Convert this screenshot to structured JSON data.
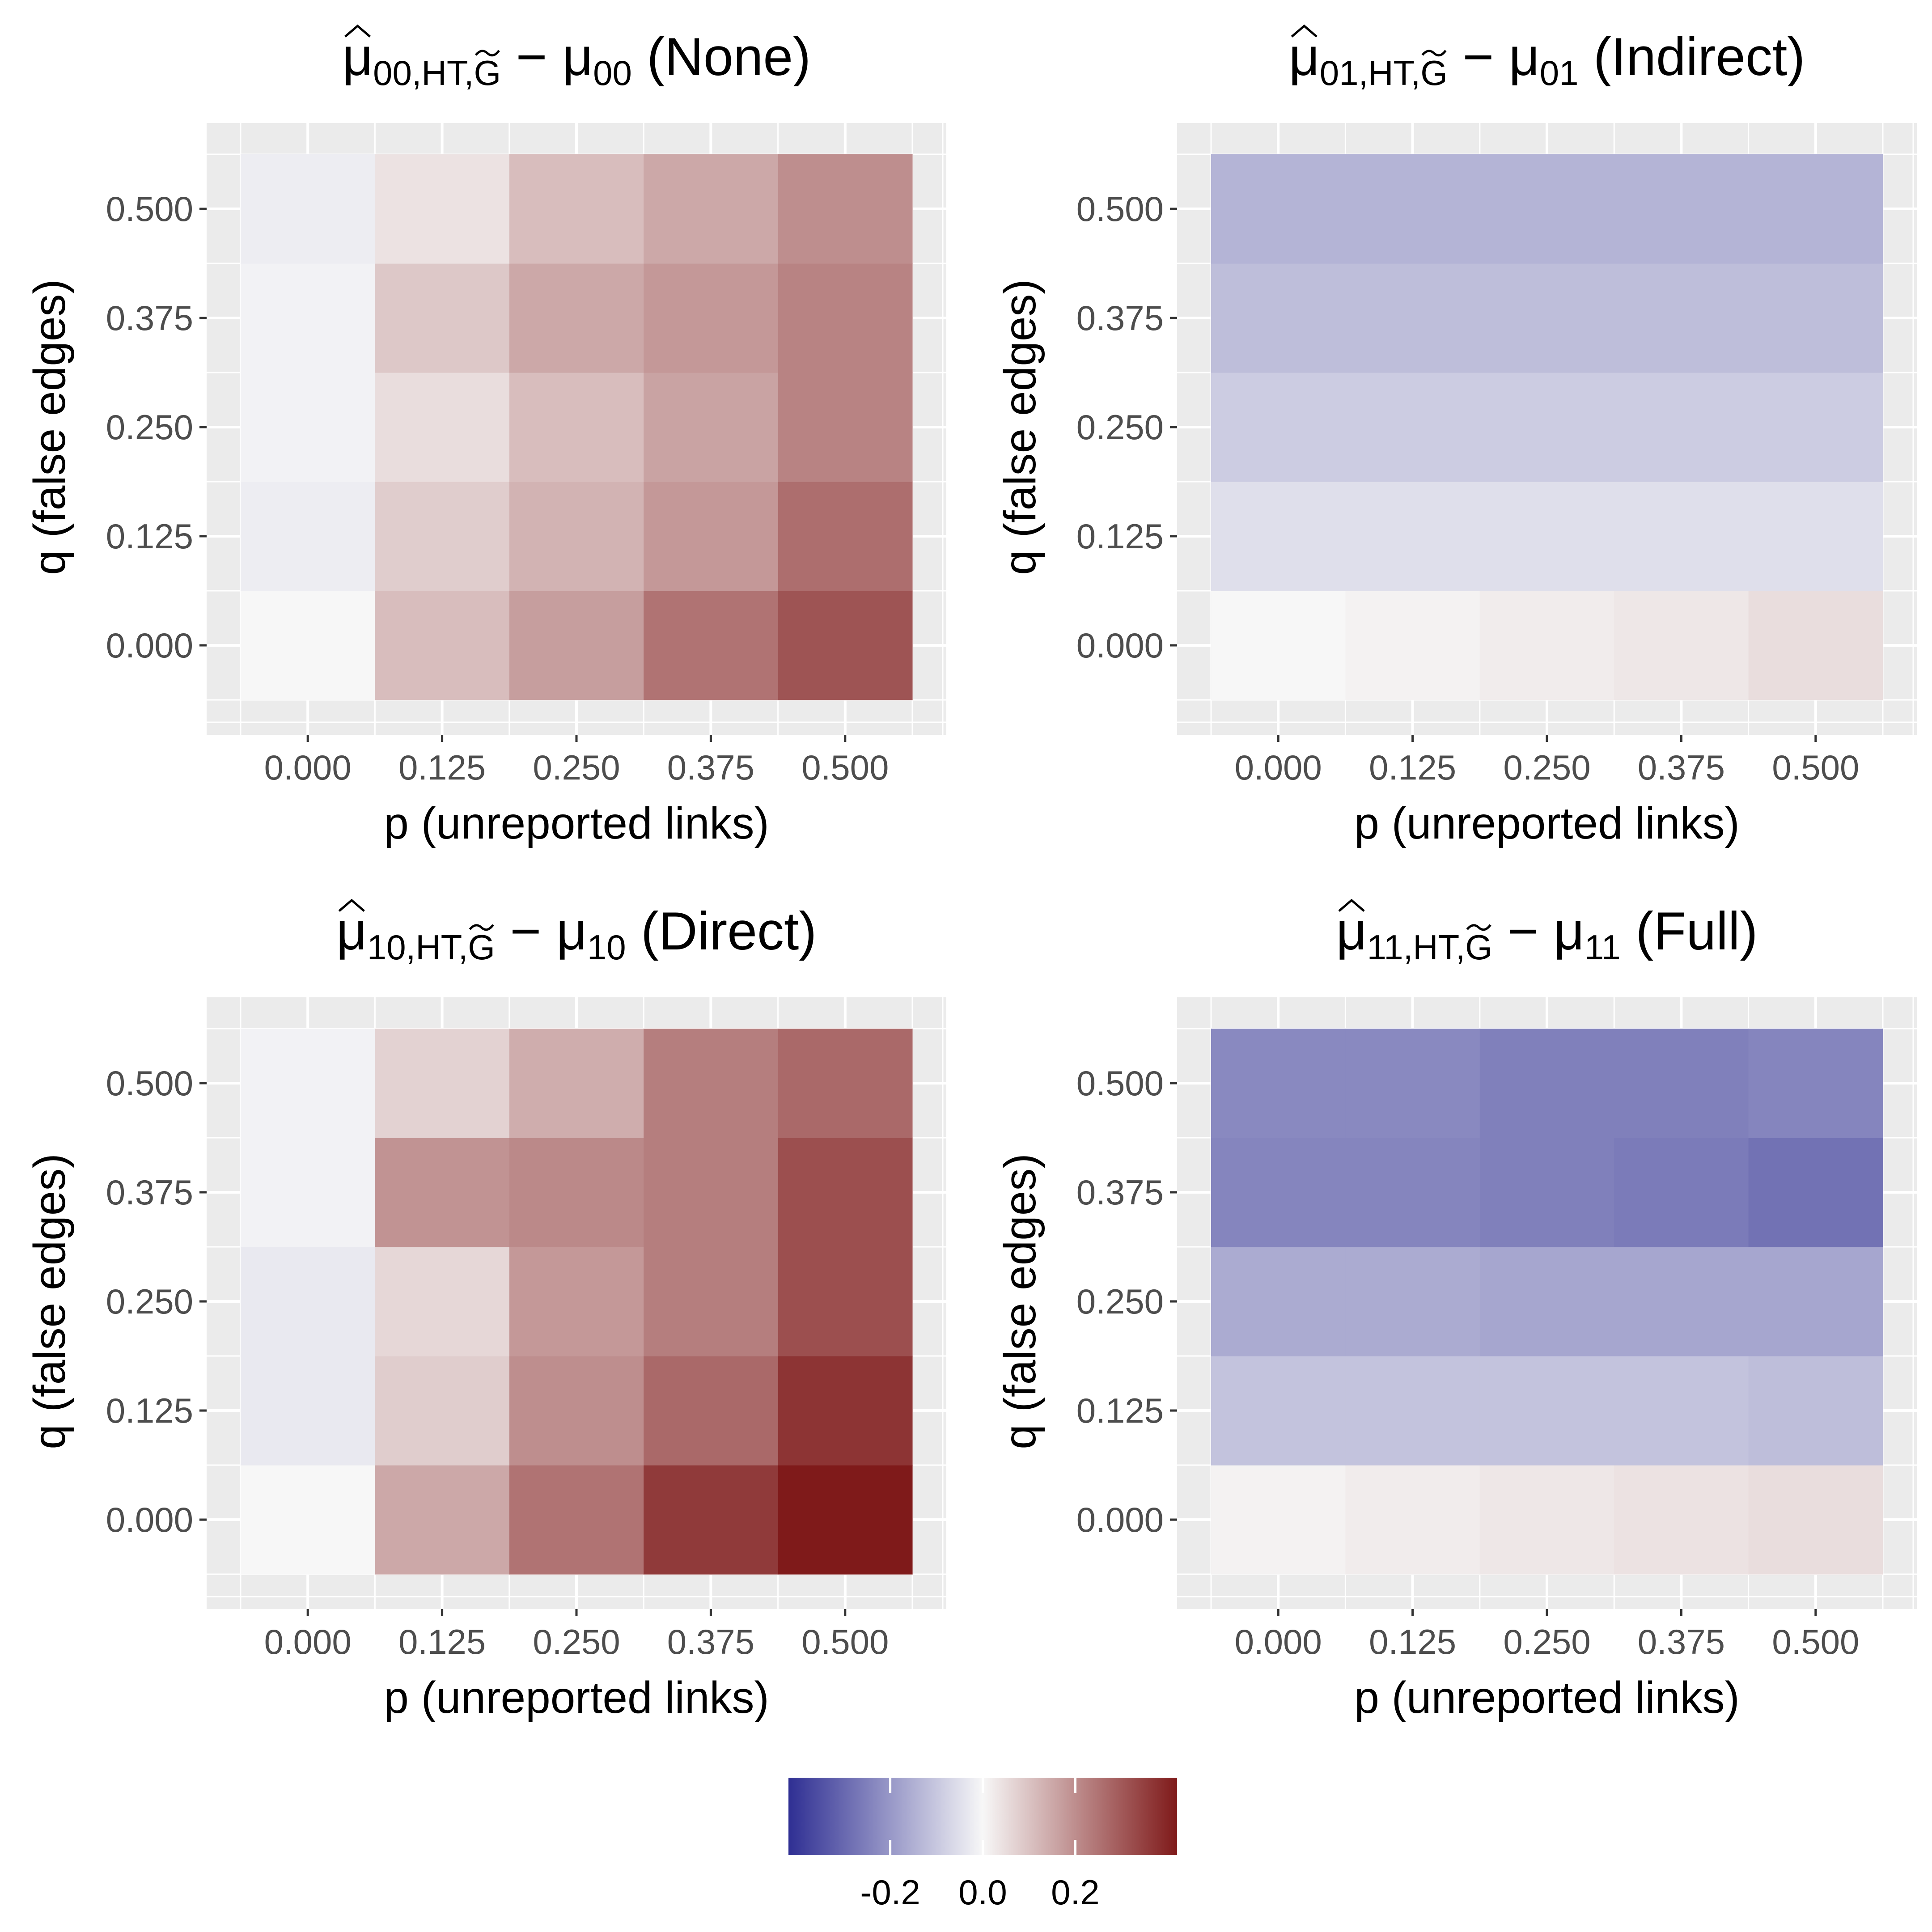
{
  "chart_data": [
    {
      "type": "heatmap",
      "title": {
        "hat_sym": "μ",
        "hat_sub": "00,HT,",
        "g_sym": "G",
        "minus": "−",
        "mu_sym": "μ",
        "mu_sub": "00",
        "label": "(None)"
      },
      "xlabel": "p (unreported links)",
      "ylabel": "q (false edges)",
      "x_ticks": [
        "0.000",
        "0.125",
        "0.250",
        "0.375",
        "0.500"
      ],
      "y_ticks": [
        "0.000",
        "0.125",
        "0.250",
        "0.375",
        "0.500"
      ],
      "rows_q_ascending": [
        [
          0.0,
          0.11,
          0.17,
          0.25,
          0.31
        ],
        [
          -0.02,
          0.08,
          0.13,
          0.18,
          0.26
        ],
        [
          -0.01,
          0.05,
          0.11,
          0.16,
          0.22
        ],
        [
          -0.01,
          0.09,
          0.15,
          0.18,
          0.22
        ],
        [
          -0.02,
          0.04,
          0.11,
          0.15,
          0.2
        ]
      ],
      "grid": true
    },
    {
      "type": "heatmap",
      "title": {
        "hat_sym": "μ",
        "hat_sub": "01,HT,",
        "g_sym": "G",
        "minus": "−",
        "mu_sym": "μ",
        "mu_sub": "01",
        "label": "(Indirect)"
      },
      "xlabel": "p (unreported links)",
      "ylabel": "q (false edges)",
      "x_ticks": [
        "0.000",
        "0.125",
        "0.250",
        "0.375",
        "0.500"
      ],
      "y_ticks": [
        "0.000",
        "0.125",
        "0.250",
        "0.375",
        "0.500"
      ],
      "rows_q_ascending": [
        [
          0.0,
          0.01,
          0.02,
          0.03,
          0.05
        ],
        [
          -0.05,
          -0.05,
          -0.05,
          -0.05,
          -0.05
        ],
        [
          -0.09,
          -0.09,
          -0.09,
          -0.09,
          -0.09
        ],
        [
          -0.12,
          -0.12,
          -0.12,
          -0.12,
          -0.12
        ],
        [
          -0.14,
          -0.14,
          -0.14,
          -0.14,
          -0.14
        ]
      ],
      "grid": true
    },
    {
      "type": "heatmap",
      "title": {
        "hat_sym": "μ",
        "hat_sub": "10,HT,",
        "g_sym": "G",
        "minus": "−",
        "mu_sym": "μ",
        "mu_sub": "10",
        "label": "(Direct)"
      },
      "xlabel": "p (unreported links)",
      "ylabel": "q (false edges)",
      "x_ticks": [
        "0.000",
        "0.125",
        "0.250",
        "0.375",
        "0.500"
      ],
      "y_ticks": [
        "0.000",
        "0.125",
        "0.250",
        "0.375",
        "0.500"
      ],
      "rows_q_ascending": [
        [
          0.0,
          0.15,
          0.25,
          0.36,
          0.42
        ],
        [
          -0.03,
          0.08,
          0.2,
          0.27,
          0.37
        ],
        [
          -0.03,
          0.06,
          0.18,
          0.23,
          0.32
        ],
        [
          -0.01,
          0.19,
          0.21,
          0.23,
          0.32
        ],
        [
          -0.01,
          0.07,
          0.14,
          0.23,
          0.27
        ]
      ],
      "grid": true
    },
    {
      "type": "heatmap",
      "title": {
        "hat_sym": "μ",
        "hat_sub": "11,HT,",
        "g_sym": "G",
        "minus": "−",
        "mu_sym": "μ",
        "mu_sub": "11",
        "label": "(Full)"
      },
      "xlabel": "p (unreported links)",
      "ylabel": "q (false edges)",
      "x_ticks": [
        "0.000",
        "0.125",
        "0.250",
        "0.375",
        "0.500"
      ],
      "y_ticks": [
        "0.000",
        "0.125",
        "0.250",
        "0.375",
        "0.500"
      ],
      "rows_q_ascending": [
        [
          0.01,
          0.02,
          0.03,
          0.04,
          0.05
        ],
        [
          -0.11,
          -0.11,
          -0.11,
          -0.11,
          -0.12
        ],
        [
          -0.16,
          -0.16,
          -0.17,
          -0.17,
          -0.17
        ],
        [
          -0.24,
          -0.24,
          -0.25,
          -0.26,
          -0.28
        ],
        [
          -0.23,
          -0.23,
          -0.25,
          -0.25,
          -0.24
        ]
      ],
      "grid": true
    }
  ],
  "legend": {
    "ticks": [
      {
        "value": -0.2,
        "label": "-0.2"
      },
      {
        "value": 0.0,
        "label": "0.0"
      },
      {
        "value": 0.2,
        "label": "0.2"
      }
    ],
    "range": [
      -0.42,
      0.42
    ],
    "colors": {
      "low": "#2f2f93",
      "mid": "#f7f7f7",
      "high": "#7f1a1a"
    },
    "placement": "bottom"
  },
  "colors": {
    "panel_bg": "#ebebeb",
    "gridline": "#ffffff",
    "tick_text": "#4d4d4d",
    "tick_mark": "#333333"
  }
}
